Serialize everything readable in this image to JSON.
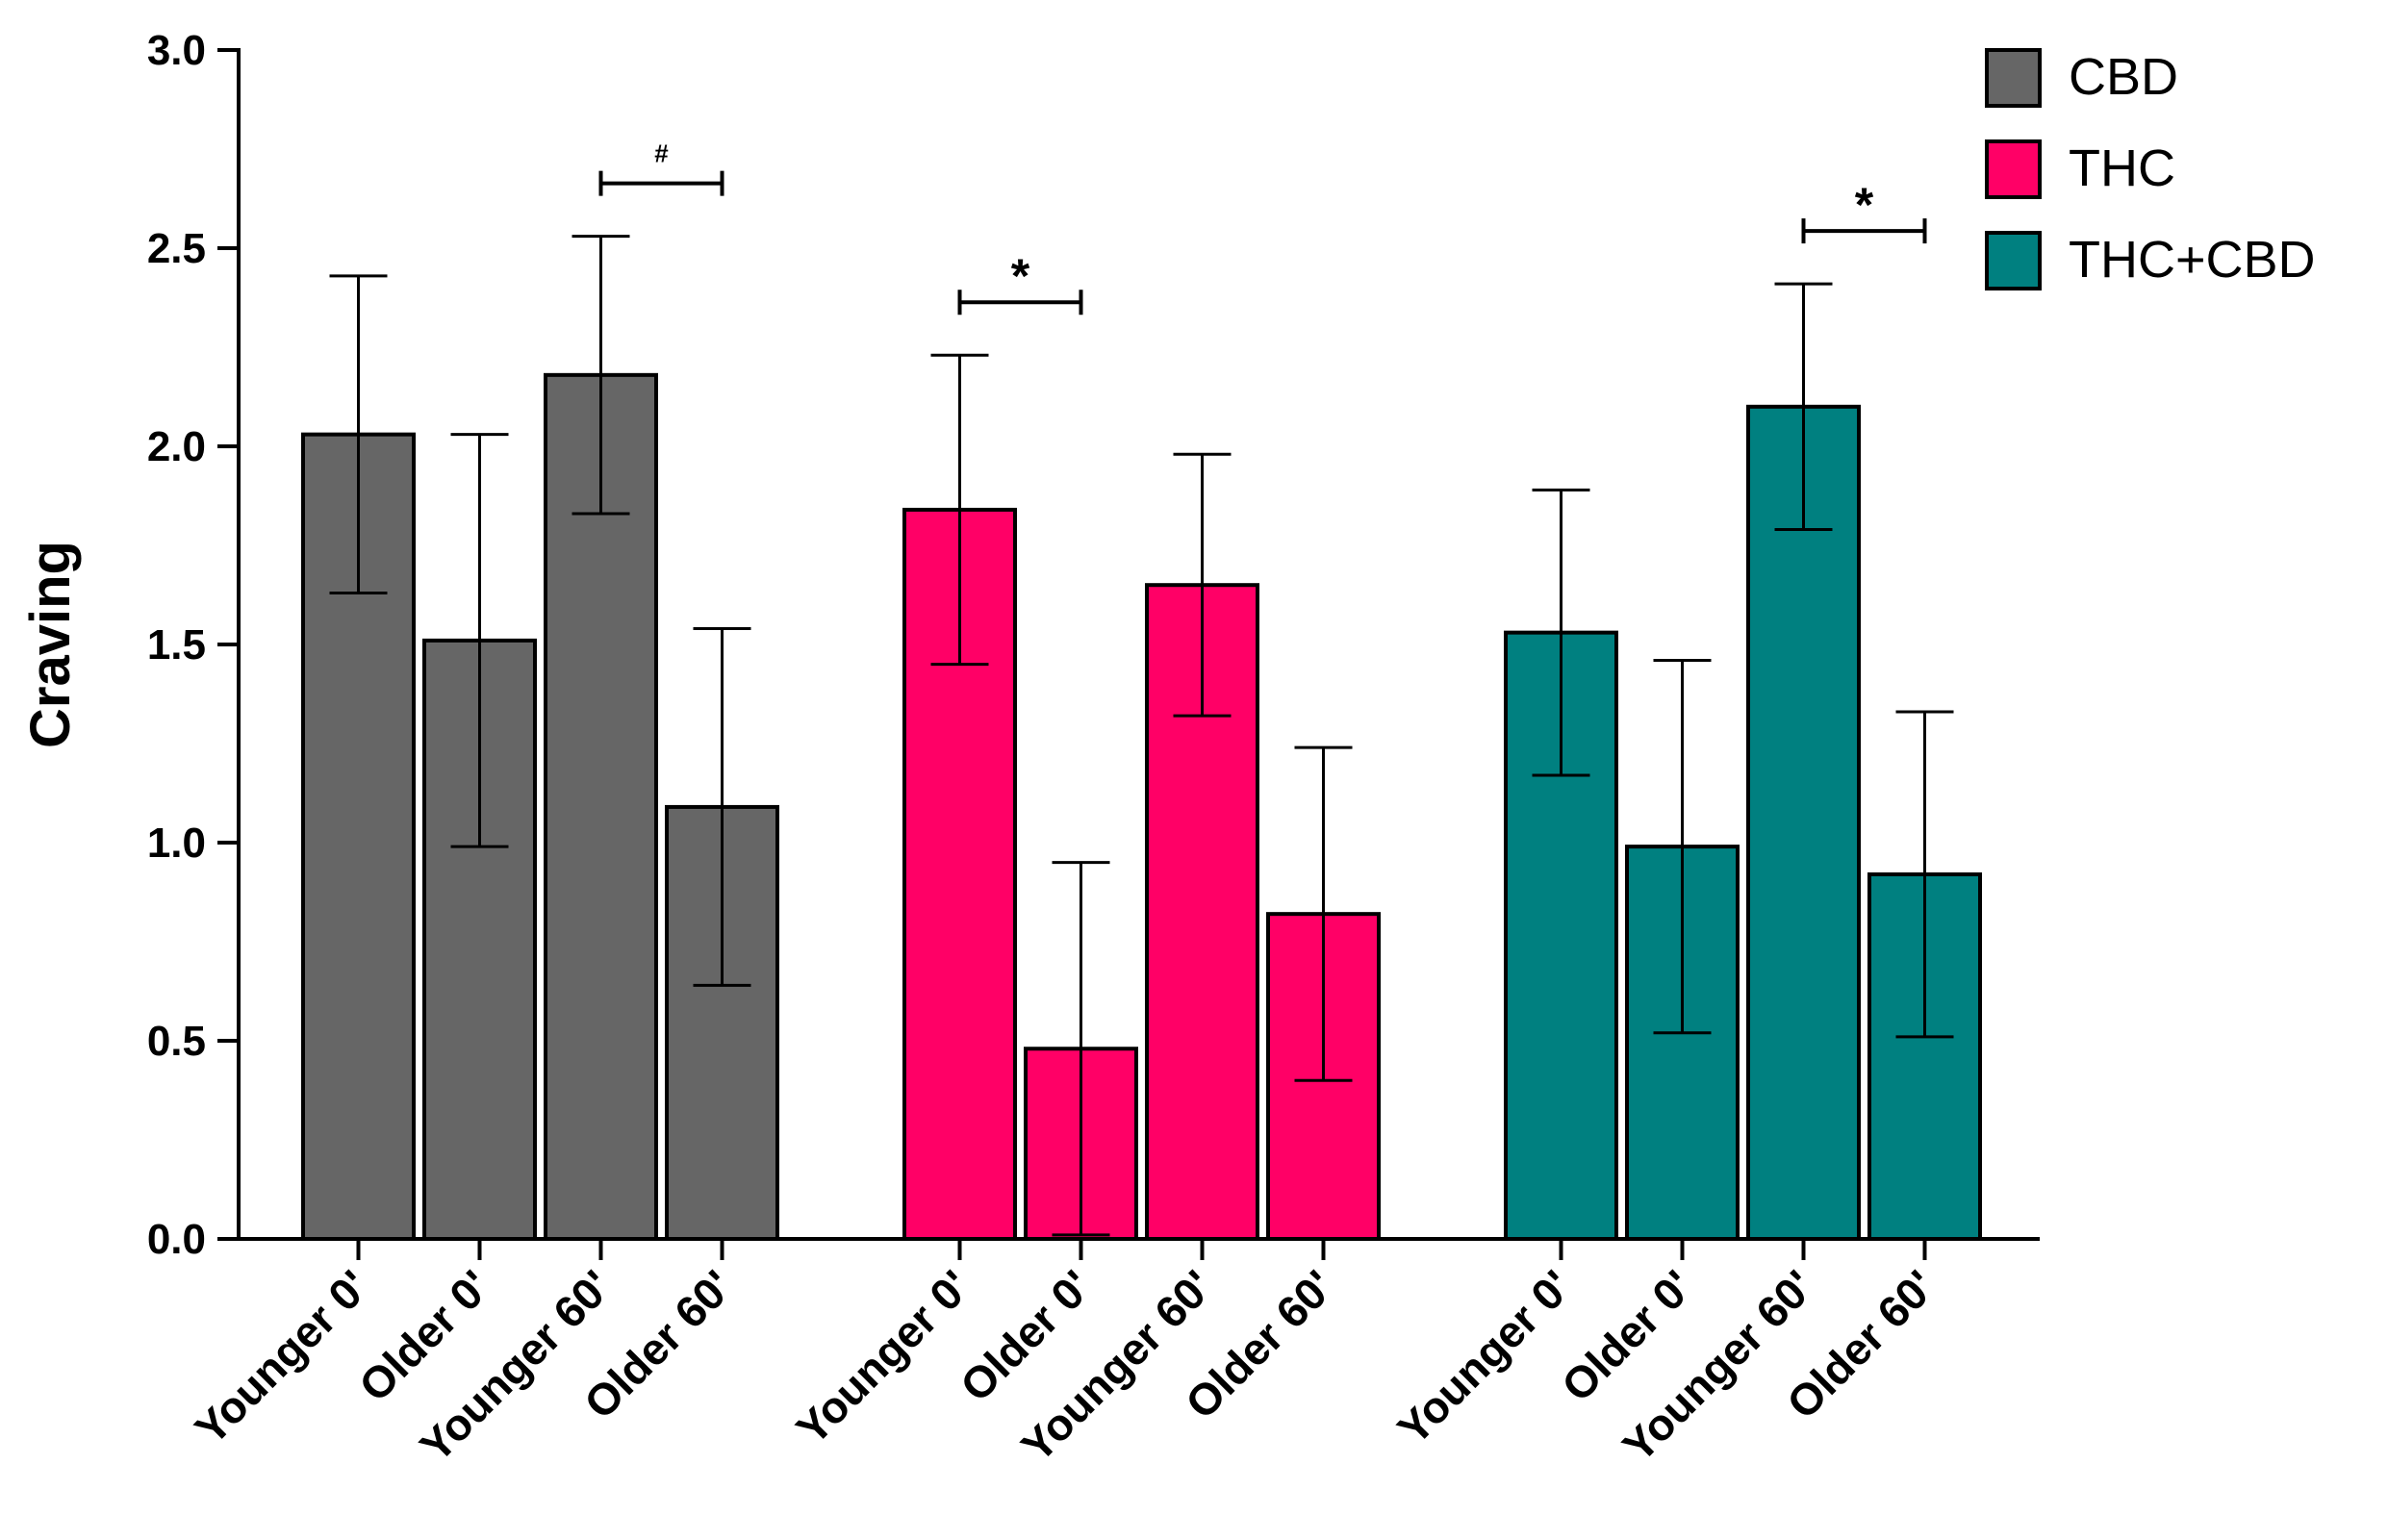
{
  "chart_data": {
    "type": "bar",
    "title": "",
    "xlabel": "",
    "ylabel": "Craving",
    "ylim": [
      0,
      3.0
    ],
    "yticks": [
      "0.0",
      "0.5",
      "1.0",
      "1.5",
      "2.0",
      "2.5",
      "3.0"
    ],
    "grid": false,
    "legend_position": "top-right",
    "categories": [
      "Younger 0'",
      "Older 0'",
      "Younger 60'",
      "Older 60'"
    ],
    "series": [
      {
        "name": "CBD",
        "color": "#666666",
        "values": [
          2.03,
          1.51,
          2.18,
          1.09
        ],
        "errors": [
          0.4,
          0.52,
          0.35,
          0.45
        ]
      },
      {
        "name": "THC",
        "color": "#ff0066",
        "values": [
          1.84,
          0.48,
          1.65,
          0.82
        ],
        "errors": [
          0.39,
          0.47,
          0.33,
          0.42
        ]
      },
      {
        "name": "THC+CBD",
        "color": "#008080",
        "values": [
          1.53,
          0.99,
          2.1,
          0.92
        ],
        "errors": [
          0.36,
          0.47,
          0.31,
          0.41
        ]
      }
    ],
    "annotations": [
      {
        "series": 0,
        "from": 2,
        "to": 3,
        "label": "#"
      },
      {
        "series": 1,
        "from": 0,
        "to": 1,
        "label": "*"
      },
      {
        "series": 2,
        "from": 2,
        "to": 3,
        "label": "*"
      }
    ]
  }
}
